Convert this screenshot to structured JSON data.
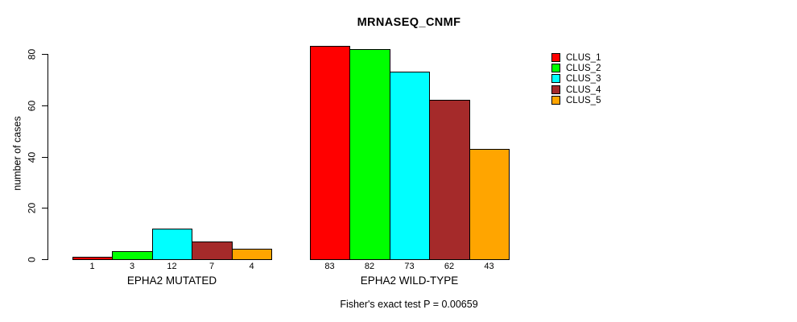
{
  "chart_data": {
    "type": "bar",
    "title": "MRNASEQ_CNMF",
    "ylabel": "number of cases",
    "xlabel": "",
    "yticks": [
      0,
      20,
      40,
      60,
      80
    ],
    "ylim": [
      0,
      83
    ],
    "grid": false,
    "legend_position": "right",
    "categories": [
      "EPHA2 MUTATED",
      "EPHA2 WILD-TYPE"
    ],
    "series": [
      {
        "name": "CLUS_1",
        "color": "#FF0000",
        "values": [
          1,
          83
        ]
      },
      {
        "name": "CLUS_2",
        "color": "#00FF00",
        "values": [
          3,
          82
        ]
      },
      {
        "name": "CLUS_3",
        "color": "#00FFFF",
        "values": [
          12,
          73
        ]
      },
      {
        "name": "CLUS_4",
        "color": "#A52A2A",
        "values": [
          7,
          62
        ]
      },
      {
        "name": "CLUS_5",
        "color": "#FFA500",
        "values": [
          4,
          43
        ]
      }
    ],
    "groups": [
      {
        "label": "EPHA2 MUTATED",
        "values": [
          1,
          3,
          12,
          7,
          4
        ]
      },
      {
        "label": "EPHA2 WILD-TYPE",
        "values": [
          83,
          82,
          73,
          62,
          43
        ]
      }
    ],
    "bar_value_labels": [
      [
        "1",
        "3",
        "12",
        "7",
        "4"
      ],
      [
        "83",
        "82",
        "73",
        "62",
        "43"
      ]
    ],
    "legend": [
      {
        "label": "CLUS_1",
        "color": "#FF0000"
      },
      {
        "label": "CLUS_2",
        "color": "#00FF00"
      },
      {
        "label": "CLUS_3",
        "color": "#00FFFF"
      },
      {
        "label": "CLUS_4",
        "color": "#A52A2A"
      },
      {
        "label": "CLUS_5",
        "color": "#FFA500"
      }
    ],
    "annotation": "Fisher's exact test P = 0.00659"
  },
  "colors": {
    "background": "#FFFFFF",
    "axis": "#000000",
    "text": "#000000"
  }
}
